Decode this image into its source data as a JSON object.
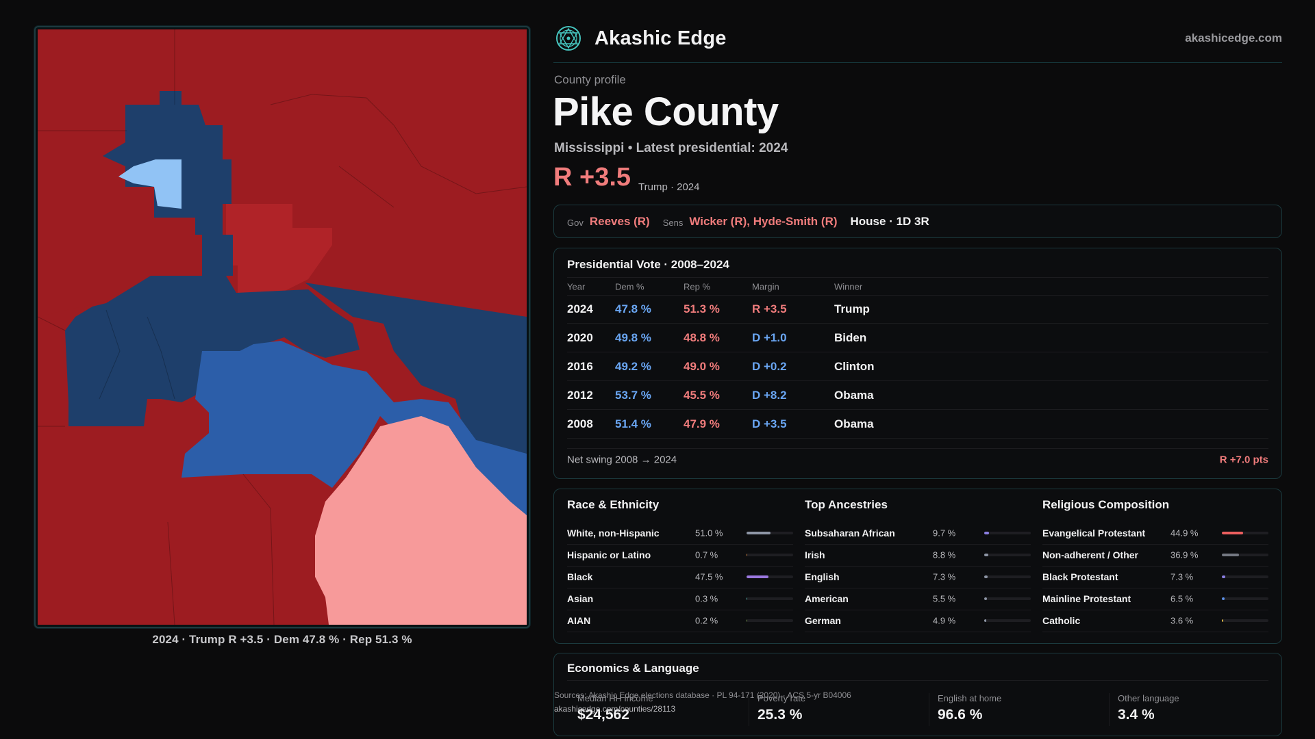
{
  "brand": {
    "name": "Akashic Edge",
    "logo_icon": "sacred-geometry-logo-icon",
    "site": "akashicedge.com"
  },
  "profile": {
    "eyebrow": "County profile",
    "county": "Pike County",
    "subline": "Mississippi • Latest presidential: 2024",
    "margin": "R +3.5",
    "margin_note": "Trump · 2024"
  },
  "map": {
    "caption": "2024 · Trump R +3.5 · Dem 47.8 % · Rep 51.3 %",
    "colors": {
      "safe_r": "#9d1c21",
      "lean_r": "#b02328",
      "tilt_r": "#f79a9a",
      "safe_d": "#1e3f6b",
      "lean_d": "#2c5ea9",
      "tilt_d": "#91c3f5"
    }
  },
  "officials": {
    "gov_label": "Gov",
    "gov": "Reeves (R)",
    "sens_label": "Sens",
    "sens": "Wicker (R), Hyde-Smith (R)",
    "house": "House · 1D 3R"
  },
  "presidential": {
    "title": "Presidential Vote · 2008–2024",
    "headers": {
      "year": "Year",
      "dem": "Dem %",
      "rep": "Rep %",
      "margin": "Margin",
      "winner": "Winner"
    },
    "rows": [
      {
        "year": "2024",
        "dem": "47.8 %",
        "rep": "51.3 %",
        "margin": "R +3.5",
        "winner": "Trump",
        "party": "R"
      },
      {
        "year": "2020",
        "dem": "49.8 %",
        "rep": "48.8 %",
        "margin": "D +1.0",
        "winner": "Biden",
        "party": "D"
      },
      {
        "year": "2016",
        "dem": "49.2 %",
        "rep": "49.0 %",
        "margin": "D +0.2",
        "winner": "Clinton",
        "party": "D"
      },
      {
        "year": "2012",
        "dem": "53.7 %",
        "rep": "45.5 %",
        "margin": "D +8.2",
        "winner": "Obama",
        "party": "D"
      },
      {
        "year": "2008",
        "dem": "51.4 %",
        "rep": "47.9 %",
        "margin": "D +3.5",
        "winner": "Obama",
        "party": "D"
      }
    ],
    "swing_label": "Net swing 2008 → 2024",
    "swing_value": "R +7.0 pts"
  },
  "demographics": [
    {
      "title": "Race & Ethnicity",
      "rows": [
        {
          "name": "White, non-Hispanic",
          "pct": "51.0 %",
          "value": 51.0,
          "color": "#8e96a6"
        },
        {
          "name": "Hispanic or Latino",
          "pct": "0.7 %",
          "value": 0.7,
          "color": "#d68a4a"
        },
        {
          "name": "Black",
          "pct": "47.5 %",
          "value": 47.5,
          "color": "#9b78e0"
        },
        {
          "name": "Asian",
          "pct": "0.3 %",
          "value": 0.3,
          "color": "#5bb7b0"
        },
        {
          "name": "AIAN",
          "pct": "0.2 %",
          "value": 0.2,
          "color": "#7d9c55"
        }
      ]
    },
    {
      "title": "Top Ancestries",
      "rows": [
        {
          "name": "Subsaharan African",
          "pct": "9.7 %",
          "value": 9.7,
          "color": "#8b7fe2"
        },
        {
          "name": "Irish",
          "pct": "8.8 %",
          "value": 8.8,
          "color": "#8e96a6"
        },
        {
          "name": "English",
          "pct": "7.3 %",
          "value": 7.3,
          "color": "#8e96a6"
        },
        {
          "name": "American",
          "pct": "5.5 %",
          "value": 5.5,
          "color": "#8e96a6"
        },
        {
          "name": "German",
          "pct": "4.9 %",
          "value": 4.9,
          "color": "#8e96a6"
        }
      ]
    },
    {
      "title": "Religious Composition",
      "rows": [
        {
          "name": "Evangelical Protestant",
          "pct": "44.9 %",
          "value": 44.9,
          "color": "#ec5f5f"
        },
        {
          "name": "Non-adherent / Other",
          "pct": "36.9 %",
          "value": 36.9,
          "color": "#747882"
        },
        {
          "name": "Black Protestant",
          "pct": "7.3 %",
          "value": 7.3,
          "color": "#8b7fe2"
        },
        {
          "name": "Mainline Protestant",
          "pct": "6.5 %",
          "value": 6.5,
          "color": "#5c8fe6"
        },
        {
          "name": "Catholic",
          "pct": "3.6 %",
          "value": 3.6,
          "color": "#d8b445"
        }
      ]
    }
  ],
  "economics": {
    "title": "Economics & Language",
    "stats": [
      {
        "label": "Median HH income",
        "value": "$24,562"
      },
      {
        "label": "Poverty rate",
        "value": "25.3 %"
      },
      {
        "label": "English at home",
        "value": "96.6 %"
      },
      {
        "label": "Other language",
        "value": "3.4 %"
      }
    ]
  },
  "sources": {
    "text": "Sources: Akashic Edge elections database · PL 94-171 (2020) · ACS 5-yr B04006",
    "url": "akashicedge.com/counties/28113"
  }
}
